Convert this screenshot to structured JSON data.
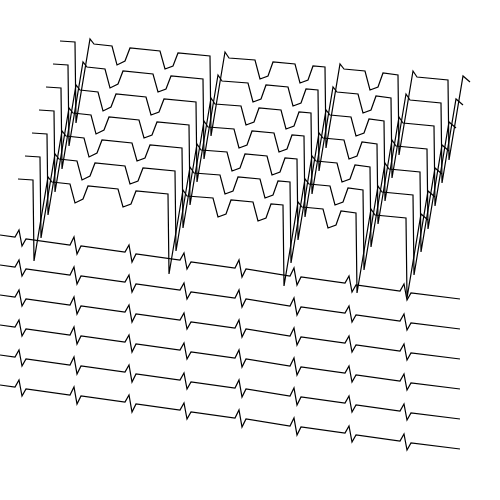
{
  "chart_data": {
    "type": "line",
    "xlim": [
      0,
      500
    ],
    "ylim": [
      0,
      500
    ],
    "grid": false,
    "tick_labels": false,
    "line_style": "solid",
    "marker": "none",
    "series": [
      {
        "color": "#000000",
        "x": [
          60,
          75,
          76,
          90,
          94,
          112,
          117,
          125,
          130,
          160,
          165,
          173,
          178,
          210,
          211,
          225,
          229,
          255,
          260,
          268,
          273,
          295,
          300,
          308,
          313,
          325,
          326,
          340,
          344,
          365,
          370,
          378,
          383,
          398,
          399,
          413,
          417,
          448,
          449,
          463,
          470
        ],
        "values": [
          459,
          458,
          377,
          461,
          456,
          454,
          435,
          439,
          452,
          449,
          431,
          434,
          447,
          444,
          364,
          448,
          442,
          440,
          421,
          424,
          438,
          436,
          417,
          420,
          434,
          433,
          352,
          436,
          431,
          429,
          410,
          413,
          427,
          425,
          345,
          429,
          423,
          420,
          340,
          424,
          418
        ]
      },
      {
        "color": "#000000",
        "x": [
          53,
          68,
          69,
          83,
          87,
          105,
          110,
          118,
          123,
          153,
          158,
          166,
          171,
          203,
          204,
          218,
          222,
          248,
          253,
          261,
          266,
          288,
          293,
          301,
          306,
          318,
          319,
          333,
          337,
          358,
          363,
          371,
          376,
          391,
          392,
          406,
          410,
          441,
          442,
          456,
          463
        ],
        "values": [
          436,
          435,
          354,
          438,
          433,
          431,
          412,
          416,
          429,
          426,
          408,
          411,
          424,
          421,
          341,
          425,
          419,
          417,
          398,
          401,
          415,
          413,
          394,
          397,
          411,
          410,
          329,
          413,
          408,
          406,
          387,
          390,
          404,
          402,
          322,
          406,
          400,
          397,
          317,
          401,
          395
        ]
      },
      {
        "color": "#000000",
        "x": [
          46,
          61,
          62,
          76,
          80,
          98,
          103,
          111,
          116,
          146,
          151,
          159,
          164,
          196,
          197,
          211,
          215,
          241,
          246,
          254,
          259,
          281,
          286,
          294,
          299,
          311,
          312,
          326,
          330,
          351,
          356,
          364,
          369,
          384,
          385,
          399,
          403,
          434,
          435,
          449,
          456
        ],
        "values": [
          413,
          412,
          331,
          415,
          410,
          408,
          389,
          393,
          406,
          403,
          385,
          388,
          401,
          398,
          318,
          402,
          396,
          394,
          375,
          378,
          392,
          390,
          371,
          374,
          388,
          387,
          306,
          390,
          385,
          383,
          364,
          367,
          381,
          379,
          299,
          383,
          377,
          374,
          294,
          378,
          372
        ]
      },
      {
        "color": "#000000",
        "x": [
          39,
          54,
          55,
          69,
          73,
          91,
          96,
          104,
          109,
          139,
          144,
          152,
          157,
          189,
          190,
          204,
          208,
          234,
          239,
          247,
          252,
          274,
          279,
          287,
          292,
          304,
          305,
          319,
          323,
          344,
          349,
          357,
          362,
          377,
          378,
          392,
          396,
          427,
          428,
          442,
          449
        ],
        "values": [
          390,
          389,
          308,
          392,
          387,
          385,
          366,
          370,
          383,
          380,
          362,
          365,
          378,
          375,
          295,
          379,
          373,
          371,
          352,
          355,
          369,
          367,
          348,
          351,
          365,
          364,
          283,
          367,
          362,
          360,
          341,
          344,
          358,
          356,
          276,
          360,
          354,
          351,
          271,
          355,
          349
        ]
      },
      {
        "color": "#000000",
        "x": [
          32,
          47,
          48,
          62,
          66,
          84,
          89,
          97,
          102,
          132,
          137,
          145,
          150,
          182,
          183,
          197,
          201,
          227,
          232,
          240,
          245,
          267,
          272,
          280,
          285,
          297,
          298,
          312,
          316,
          337,
          342,
          350,
          355,
          370,
          371,
          385,
          389,
          420,
          421,
          435,
          442
        ],
        "values": [
          367,
          366,
          285,
          369,
          364,
          362,
          343,
          347,
          360,
          357,
          339,
          342,
          355,
          352,
          272,
          356,
          350,
          348,
          329,
          332,
          346,
          344,
          325,
          328,
          342,
          341,
          260,
          344,
          339,
          337,
          318,
          321,
          335,
          333,
          253,
          337,
          331,
          328,
          248,
          332,
          326
        ]
      },
      {
        "color": "#000000",
        "x": [
          25,
          40,
          41,
          55,
          59,
          77,
          82,
          90,
          95,
          125,
          130,
          138,
          143,
          175,
          176,
          190,
          194,
          220,
          225,
          233,
          238,
          260,
          265,
          273,
          278,
          290,
          291,
          305,
          309,
          330,
          335,
          343,
          348,
          363,
          364,
          378,
          382,
          413,
          414,
          428,
          435
        ],
        "values": [
          344,
          343,
          262,
          346,
          341,
          339,
          320,
          324,
          337,
          334,
          316,
          319,
          332,
          329,
          249,
          333,
          327,
          325,
          306,
          309,
          323,
          321,
          302,
          305,
          319,
          318,
          237,
          321,
          316,
          314,
          295,
          298,
          312,
          310,
          230,
          314,
          308,
          305,
          225,
          309,
          303
        ]
      },
      {
        "color": "#000000",
        "x": [
          18,
          33,
          34,
          48,
          52,
          70,
          75,
          83,
          88,
          118,
          123,
          131,
          136,
          168,
          169,
          183,
          187,
          213,
          218,
          226,
          231,
          253,
          258,
          266,
          271,
          283,
          284,
          298,
          302,
          323,
          328,
          336,
          341,
          356,
          357,
          371,
          375,
          406,
          407,
          421,
          428
        ],
        "values": [
          321,
          320,
          239,
          323,
          318,
          316,
          297,
          301,
          314,
          311,
          293,
          296,
          309,
          306,
          226,
          310,
          304,
          302,
          283,
          286,
          300,
          298,
          279,
          282,
          296,
          295,
          214,
          298,
          293,
          291,
          272,
          275,
          289,
          287,
          207,
          291,
          285,
          282,
          202,
          286,
          280
        ]
      },
      {
        "color": "#000000",
        "x": [
          0,
          15,
          19,
          22,
          26,
          70,
          74,
          77,
          81,
          125,
          129,
          132,
          136,
          180,
          184,
          187,
          191,
          235,
          239,
          242,
          246,
          290,
          294,
          297,
          301,
          345,
          349,
          352,
          356,
          400,
          404,
          407,
          411,
          460
        ],
        "values": [
          265,
          263,
          270,
          254,
          261,
          255,
          263,
          246,
          254,
          248,
          255,
          238,
          246,
          240,
          247,
          231,
          238,
          232,
          240,
          223,
          231,
          224,
          232,
          215,
          223,
          217,
          224,
          208,
          215,
          209,
          216,
          200,
          207,
          201
        ]
      },
      {
        "color": "#000000",
        "x": [
          0,
          15,
          19,
          22,
          26,
          70,
          74,
          77,
          81,
          125,
          129,
          132,
          136,
          180,
          184,
          187,
          191,
          235,
          239,
          242,
          246,
          290,
          294,
          297,
          301,
          345,
          349,
          352,
          356,
          400,
          404,
          407,
          411,
          460
        ],
        "values": [
          235,
          233,
          240,
          224,
          231,
          225,
          233,
          216,
          224,
          218,
          225,
          208,
          216,
          210,
          217,
          201,
          208,
          202,
          210,
          193,
          201,
          194,
          202,
          185,
          193,
          187,
          194,
          178,
          185,
          179,
          186,
          170,
          177,
          171
        ]
      },
      {
        "color": "#000000",
        "x": [
          0,
          15,
          19,
          22,
          26,
          70,
          74,
          77,
          81,
          125,
          129,
          132,
          136,
          180,
          184,
          187,
          191,
          235,
          239,
          242,
          246,
          290,
          294,
          297,
          301,
          345,
          349,
          352,
          356,
          400,
          404,
          407,
          411,
          460
        ],
        "values": [
          205,
          203,
          210,
          194,
          201,
          195,
          203,
          186,
          194,
          188,
          195,
          178,
          186,
          180,
          187,
          171,
          178,
          172,
          180,
          163,
          171,
          164,
          172,
          155,
          163,
          157,
          164,
          148,
          155,
          149,
          156,
          140,
          147,
          141
        ]
      },
      {
        "color": "#000000",
        "x": [
          0,
          15,
          19,
          22,
          26,
          70,
          74,
          77,
          81,
          125,
          129,
          132,
          136,
          180,
          184,
          187,
          191,
          235,
          239,
          242,
          246,
          290,
          294,
          297,
          301,
          345,
          349,
          352,
          356,
          400,
          404,
          407,
          411,
          460
        ],
        "values": [
          175,
          173,
          180,
          164,
          171,
          165,
          173,
          156,
          164,
          158,
          165,
          148,
          156,
          150,
          157,
          141,
          148,
          142,
          150,
          133,
          141,
          134,
          142,
          125,
          133,
          127,
          134,
          118,
          125,
          119,
          126,
          110,
          117,
          111
        ]
      },
      {
        "color": "#000000",
        "x": [
          0,
          15,
          19,
          22,
          26,
          70,
          74,
          77,
          81,
          125,
          129,
          132,
          136,
          180,
          184,
          187,
          191,
          235,
          239,
          242,
          246,
          290,
          294,
          297,
          301,
          345,
          349,
          352,
          356,
          400,
          404,
          407,
          411,
          460
        ],
        "values": [
          145,
          143,
          150,
          134,
          141,
          135,
          143,
          126,
          134,
          128,
          135,
          118,
          126,
          120,
          127,
          111,
          118,
          112,
          120,
          103,
          111,
          104,
          112,
          95,
          103,
          97,
          104,
          88,
          95,
          89,
          96,
          80,
          87,
          81
        ]
      },
      {
        "color": "#000000",
        "x": [
          0,
          15,
          19,
          22,
          26,
          70,
          74,
          77,
          81,
          125,
          129,
          132,
          136,
          180,
          184,
          187,
          191,
          235,
          239,
          242,
          246,
          290,
          294,
          297,
          301,
          345,
          349,
          352,
          356,
          400,
          404,
          407,
          411,
          460
        ],
        "values": [
          115,
          113,
          120,
          104,
          111,
          105,
          113,
          96,
          104,
          98,
          105,
          88,
          96,
          90,
          97,
          81,
          88,
          82,
          90,
          73,
          81,
          74,
          82,
          65,
          73,
          67,
          74,
          58,
          65,
          59,
          66,
          50,
          57,
          51
        ]
      }
    ]
  }
}
